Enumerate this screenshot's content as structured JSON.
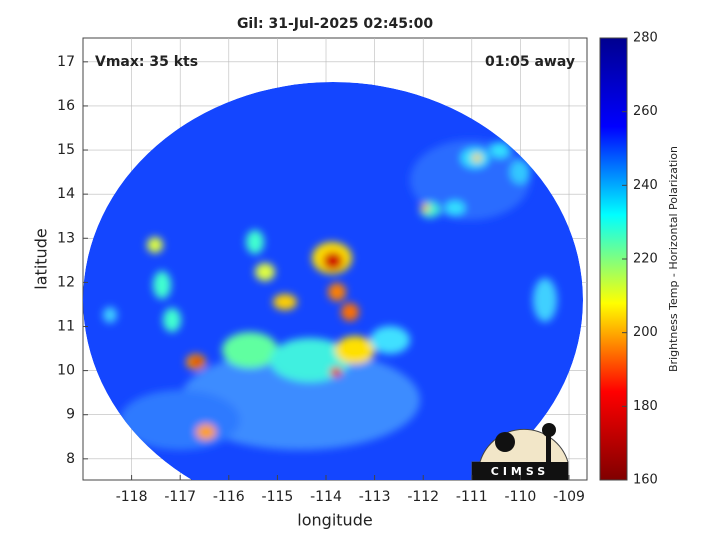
{
  "chart_data": {
    "type": "image",
    "title": "Gil: 31-Jul-2025 02:45:00",
    "annotations": [
      "Vmax: 35 kts",
      "01:05 away"
    ],
    "x_label": "longitude",
    "y_label": "latitude",
    "xlim": [
      -119,
      -108.63
    ],
    "xticks": [
      -118,
      -117,
      -116,
      -115,
      -114,
      -113,
      -112,
      -111,
      -110,
      -109
    ],
    "ylim": [
      7.52,
      17.54
    ],
    "yticks": [
      8,
      9,
      10,
      11,
      12,
      13,
      14,
      15,
      16,
      17
    ],
    "grid": true,
    "colorbar": {
      "label": "Brightness Temp - Horizontal Polarization",
      "lim": [
        160,
        280
      ],
      "ticks": [
        160,
        180,
        200,
        220,
        240,
        260,
        280
      ],
      "colormap": [
        "#800000",
        "#ff0000",
        "#ffff00",
        "#00ffff",
        "#0000ff",
        "#00008f"
      ]
    },
    "logo": "CIMSS"
  }
}
